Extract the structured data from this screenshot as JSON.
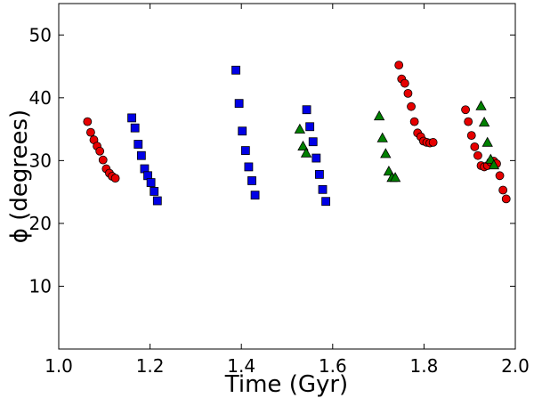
{
  "chart_data": {
    "type": "scatter",
    "title": "",
    "xlabel": "Time (Gyr)",
    "ylabel": "ϕ (degrees)",
    "xlim": [
      1.0,
      2.0
    ],
    "ylim": [
      0,
      55
    ],
    "xticks": [
      1.0,
      1.2,
      1.4,
      1.6,
      1.8,
      2.0
    ],
    "xtick_labels": [
      "1.0",
      "1.2",
      "1.4",
      "1.6",
      "1.8",
      "2.0"
    ],
    "yticks": [
      10,
      20,
      30,
      40,
      50
    ],
    "ytick_labels": [
      "10",
      "20",
      "30",
      "40",
      "50"
    ],
    "grid": false,
    "series": [
      {
        "name": "red circles",
        "marker": "circle",
        "color": "#e60000",
        "points": [
          {
            "x": 1.063,
            "y": 36.2
          },
          {
            "x": 1.07,
            "y": 34.5
          },
          {
            "x": 1.077,
            "y": 33.3
          },
          {
            "x": 1.084,
            "y": 32.3
          },
          {
            "x": 1.09,
            "y": 31.5
          },
          {
            "x": 1.097,
            "y": 30.1
          },
          {
            "x": 1.104,
            "y": 28.7
          },
          {
            "x": 1.111,
            "y": 28.0
          },
          {
            "x": 1.117,
            "y": 27.5
          },
          {
            "x": 1.124,
            "y": 27.2
          },
          {
            "x": 1.745,
            "y": 45.2
          },
          {
            "x": 1.751,
            "y": 43.0
          },
          {
            "x": 1.758,
            "y": 42.3
          },
          {
            "x": 1.765,
            "y": 40.7
          },
          {
            "x": 1.772,
            "y": 38.6
          },
          {
            "x": 1.779,
            "y": 36.2
          },
          {
            "x": 1.786,
            "y": 34.4
          },
          {
            "x": 1.793,
            "y": 33.8
          },
          {
            "x": 1.799,
            "y": 33.1
          },
          {
            "x": 1.806,
            "y": 32.9
          },
          {
            "x": 1.813,
            "y": 32.8
          },
          {
            "x": 1.82,
            "y": 32.9
          },
          {
            "x": 1.891,
            "y": 38.1
          },
          {
            "x": 1.897,
            "y": 36.2
          },
          {
            "x": 1.904,
            "y": 34.0
          },
          {
            "x": 1.911,
            "y": 32.2
          },
          {
            "x": 1.918,
            "y": 30.8
          },
          {
            "x": 1.925,
            "y": 29.2
          },
          {
            "x": 1.932,
            "y": 29.0
          },
          {
            "x": 1.939,
            "y": 29.2
          },
          {
            "x": 1.946,
            "y": 29.8
          },
          {
            "x": 1.953,
            "y": 29.9
          },
          {
            "x": 1.959,
            "y": 29.5
          },
          {
            "x": 1.966,
            "y": 27.6
          },
          {
            "x": 1.973,
            "y": 25.3
          },
          {
            "x": 1.98,
            "y": 23.9
          }
        ]
      },
      {
        "name": "blue squares",
        "marker": "square",
        "color": "#0000e6",
        "points": [
          {
            "x": 1.16,
            "y": 36.8
          },
          {
            "x": 1.167,
            "y": 35.2
          },
          {
            "x": 1.174,
            "y": 32.6
          },
          {
            "x": 1.181,
            "y": 30.8
          },
          {
            "x": 1.188,
            "y": 28.7
          },
          {
            "x": 1.195,
            "y": 27.6
          },
          {
            "x": 1.202,
            "y": 26.5
          },
          {
            "x": 1.209,
            "y": 25.1
          },
          {
            "x": 1.216,
            "y": 23.6
          },
          {
            "x": 1.388,
            "y": 44.4
          },
          {
            "x": 1.395,
            "y": 39.1
          },
          {
            "x": 1.402,
            "y": 34.7
          },
          {
            "x": 1.409,
            "y": 31.6
          },
          {
            "x": 1.416,
            "y": 29.0
          },
          {
            "x": 1.423,
            "y": 26.8
          },
          {
            "x": 1.43,
            "y": 24.5
          },
          {
            "x": 1.543,
            "y": 38.1
          },
          {
            "x": 1.55,
            "y": 35.4
          },
          {
            "x": 1.557,
            "y": 33.0
          },
          {
            "x": 1.564,
            "y": 30.4
          },
          {
            "x": 1.571,
            "y": 27.8
          },
          {
            "x": 1.578,
            "y": 25.4
          },
          {
            "x": 1.585,
            "y": 23.5
          }
        ]
      },
      {
        "name": "green triangles",
        "marker": "triangle",
        "color": "#008000",
        "points": [
          {
            "x": 1.528,
            "y": 35.0
          },
          {
            "x": 1.535,
            "y": 32.3
          },
          {
            "x": 1.542,
            "y": 31.2
          },
          {
            "x": 1.702,
            "y": 37.1
          },
          {
            "x": 1.709,
            "y": 33.6
          },
          {
            "x": 1.716,
            "y": 31.1
          },
          {
            "x": 1.723,
            "y": 28.3
          },
          {
            "x": 1.73,
            "y": 27.3
          },
          {
            "x": 1.737,
            "y": 27.3
          },
          {
            "x": 1.925,
            "y": 38.7
          },
          {
            "x": 1.932,
            "y": 36.1
          },
          {
            "x": 1.939,
            "y": 32.9
          },
          {
            "x": 1.946,
            "y": 30.2
          },
          {
            "x": 1.953,
            "y": 29.3
          }
        ]
      }
    ]
  }
}
